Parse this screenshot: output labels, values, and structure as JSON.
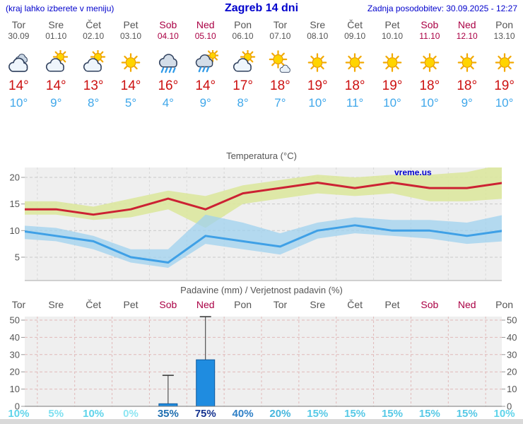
{
  "header": {
    "menu_note": "(kraj lahko izberete v meniju)",
    "title": "Zagreb 14 dni",
    "last_updated": "Zadnja posodobitev: 30.09.2025 - 12:27"
  },
  "watermark": "vreme.us",
  "days": [
    {
      "name": "Tor",
      "date": "30.09",
      "weekend": false,
      "icon": "cloudy",
      "high": 14,
      "low": 10
    },
    {
      "name": "Sre",
      "date": "01.10",
      "weekend": false,
      "icon": "sun-cloud",
      "high": 14,
      "low": 9
    },
    {
      "name": "Čet",
      "date": "02.10",
      "weekend": false,
      "icon": "sun-cloud",
      "high": 13,
      "low": 8
    },
    {
      "name": "Pet",
      "date": "03.10",
      "weekend": false,
      "icon": "sun",
      "high": 14,
      "low": 5
    },
    {
      "name": "Sob",
      "date": "04.10",
      "weekend": true,
      "icon": "rain",
      "high": 16,
      "low": 4
    },
    {
      "name": "Ned",
      "date": "05.10",
      "weekend": true,
      "icon": "sun-rain",
      "high": 14,
      "low": 9
    },
    {
      "name": "Pon",
      "date": "06.10",
      "weekend": false,
      "icon": "sun-cloud",
      "high": 17,
      "low": 8
    },
    {
      "name": "Tor",
      "date": "07.10",
      "weekend": false,
      "icon": "sun-small-cloud",
      "high": 18,
      "low": 7
    },
    {
      "name": "Sre",
      "date": "08.10",
      "weekend": false,
      "icon": "sun",
      "high": 19,
      "low": 10
    },
    {
      "name": "Čet",
      "date": "09.10",
      "weekend": false,
      "icon": "sun",
      "high": 18,
      "low": 11
    },
    {
      "name": "Pet",
      "date": "10.10",
      "weekend": false,
      "icon": "sun",
      "high": 19,
      "low": 10
    },
    {
      "name": "Sob",
      "date": "11.10",
      "weekend": true,
      "icon": "sun",
      "high": 18,
      "low": 10
    },
    {
      "name": "Ned",
      "date": "12.10",
      "weekend": true,
      "icon": "sun",
      "high": 18,
      "low": 9
    },
    {
      "name": "Pon",
      "date": "13.10",
      "weekend": false,
      "icon": "sun",
      "high": 19,
      "low": 10
    }
  ],
  "chart_data": [
    {
      "type": "line",
      "title": "Temperatura (°C)",
      "categories": [
        "Tor 30.09",
        "Sre 01.10",
        "Čet 02.10",
        "Pet 03.10",
        "Sob 04.10",
        "Ned 05.10",
        "Pon 06.10",
        "Tor 07.10",
        "Sre 08.10",
        "Čet 09.10",
        "Pet 10.10",
        "Sob 11.10",
        "Ned 12.10",
        "Pon 13.10"
      ],
      "ylabel": "°C",
      "ylim": [
        0.5,
        22
      ],
      "yticks": [
        5,
        10,
        15,
        20
      ],
      "grid": true,
      "plot_bg": "#efefef",
      "series": [
        {
          "name": "max_temp",
          "color": "#cc2233",
          "values": [
            14,
            14,
            13,
            14,
            16,
            14,
            17,
            18,
            19,
            18,
            19,
            18,
            18,
            19
          ]
        },
        {
          "name": "max_range_upper",
          "values": [
            15.5,
            15.5,
            14.5,
            16,
            17.5,
            16.5,
            18.5,
            19.5,
            20.5,
            20,
            20.5,
            20.5,
            21,
            22.5
          ]
        },
        {
          "name": "max_range_lower",
          "values": [
            13,
            13,
            12,
            12.5,
            14,
            10.5,
            15,
            16,
            17,
            16.5,
            17,
            15.5,
            15.5,
            16
          ]
        },
        {
          "name": "min_temp",
          "color": "#3fa0e6",
          "values": [
            10,
            9,
            8,
            5,
            4,
            9,
            8,
            7,
            10,
            11,
            10,
            10,
            9,
            10
          ]
        },
        {
          "name": "min_range_upper",
          "values": [
            11,
            10.5,
            9,
            6.5,
            6.5,
            13,
            11.5,
            9.5,
            11.5,
            12.5,
            12,
            12,
            11.5,
            13
          ]
        },
        {
          "name": "min_range_lower",
          "values": [
            8.5,
            8,
            6.5,
            4,
            3,
            7.5,
            6.5,
            5.5,
            8.5,
            9.5,
            9,
            8.5,
            7.5,
            8
          ]
        }
      ],
      "band_colors": {
        "max": "#dce79e",
        "min": "#9fd2ef"
      }
    },
    {
      "type": "bar",
      "title": "Padavine (mm) / Verjetnost padavin (%)",
      "categories": [
        "Tor",
        "Sre",
        "Čet",
        "Pet",
        "Sob",
        "Ned",
        "Pon",
        "Tor",
        "Sre",
        "Čet",
        "Pet",
        "Sob",
        "Ned",
        "Pon"
      ],
      "ylim": [
        0,
        53
      ],
      "yticks": [
        0,
        10,
        20,
        30,
        40,
        50
      ],
      "grid": true,
      "plot_bg": "#efefef",
      "precip_mm": [
        0,
        0,
        0,
        0,
        1.5,
        27,
        0,
        0,
        0,
        0,
        0,
        0,
        0,
        0
      ],
      "precip_max_mm": [
        null,
        null,
        null,
        null,
        18,
        52,
        null,
        null,
        null,
        null,
        null,
        null,
        null,
        null
      ],
      "probability_pct": [
        10,
        5,
        10,
        0,
        35,
        75,
        40,
        20,
        15,
        15,
        15,
        15,
        15,
        10
      ],
      "probability_colors": [
        "#5fd4ea",
        "#7fe0f0",
        "#5fd4ea",
        "#8ee6f2",
        "#1f6fb0",
        "#15338f",
        "#2e7fc6",
        "#46b6dd",
        "#57c9e6",
        "#57c9e6",
        "#57c9e6",
        "#57c9e6",
        "#57c9e6",
        "#5fd4ea"
      ],
      "bar_color": "#1f8ce0",
      "bar_border": "#0f5a9e"
    }
  ],
  "colors": {
    "header_blue": "#0000cc",
    "weekday": "#555555",
    "weekend": "#aa0044",
    "high_temp": "#cc1111",
    "low_temp": "#3fa7ea",
    "axis_text": "#555555",
    "grid_gray": "#c9c9c9",
    "grid_pink": "#e0b9b9"
  }
}
